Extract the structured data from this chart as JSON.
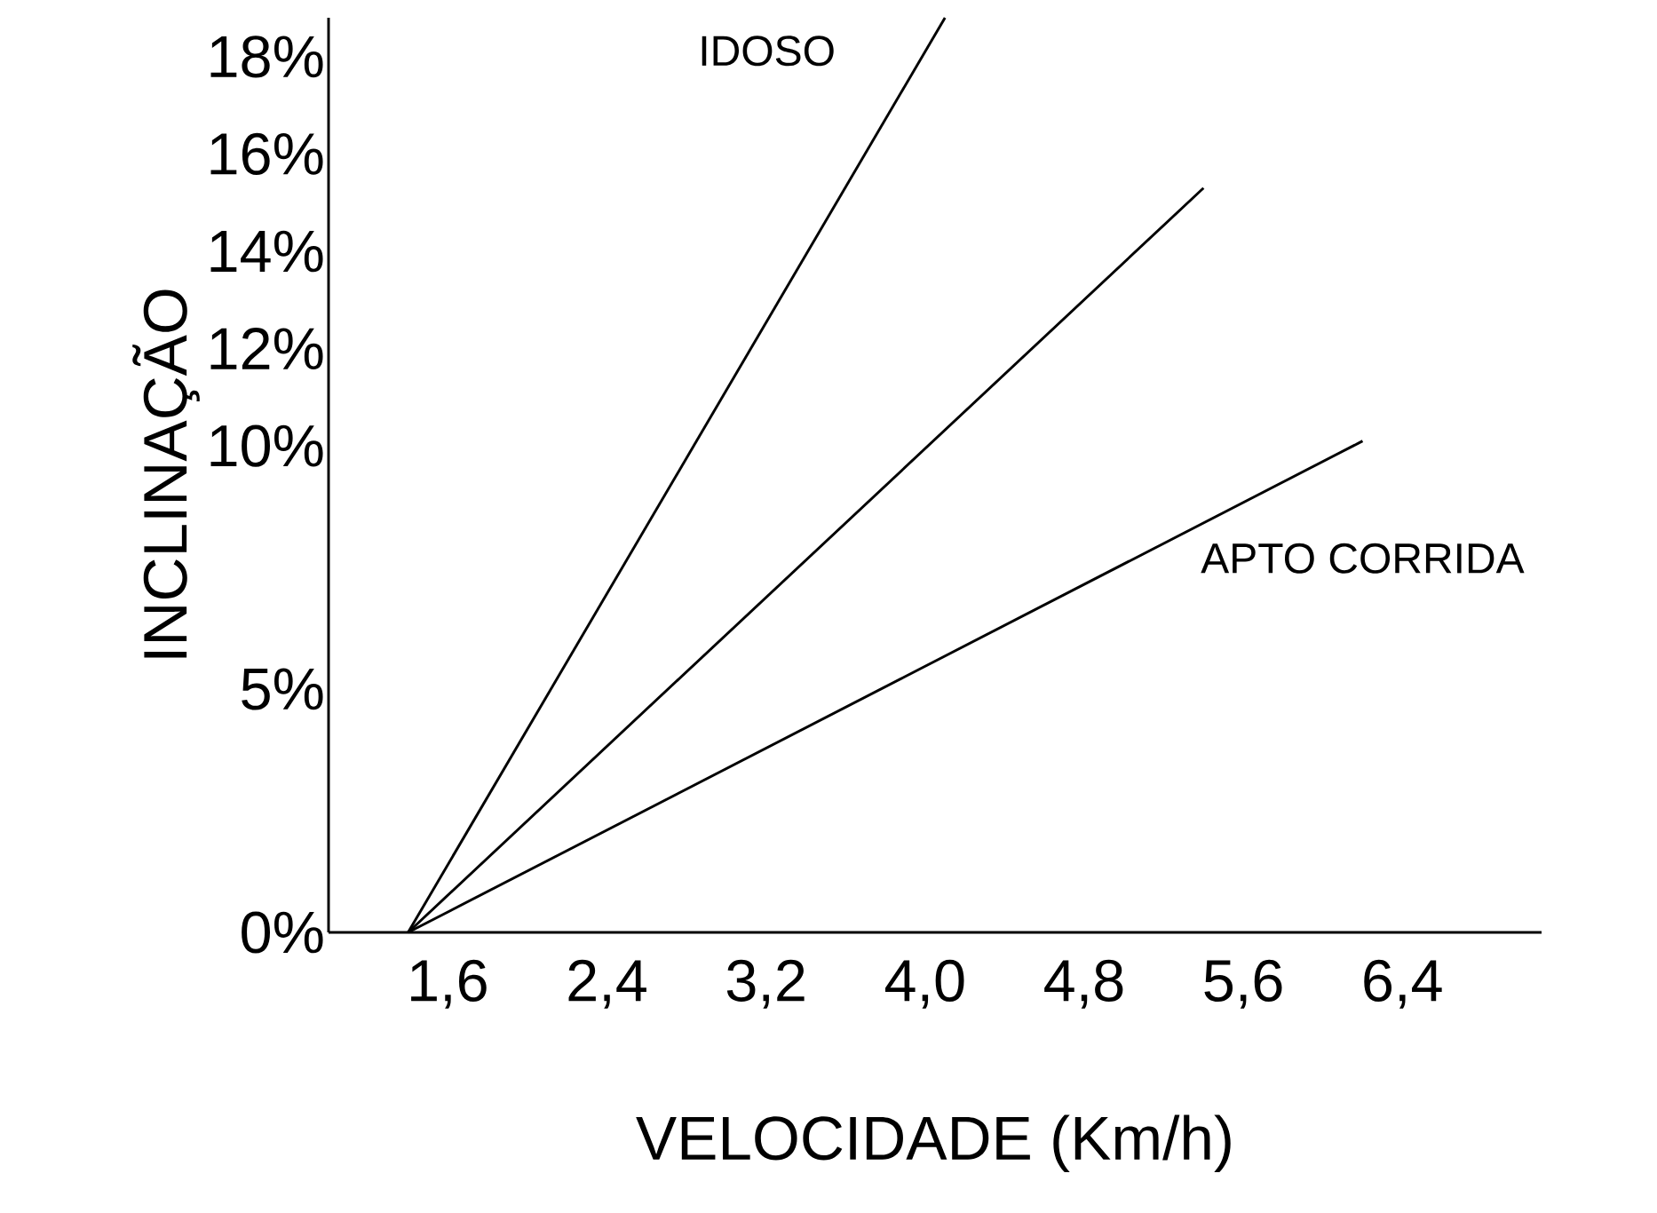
{
  "chart_data": {
    "type": "line",
    "xlabel": "VELOCIDADE (Km/h)",
    "ylabel": "INCLINAÇÃO",
    "xlim": [
      1.0,
      7.1
    ],
    "ylim": [
      0,
      18.8
    ],
    "xticks": [
      {
        "value": 1.6,
        "label": "1,6"
      },
      {
        "value": 2.4,
        "label": "2,4"
      },
      {
        "value": 3.2,
        "label": "3,2"
      },
      {
        "value": 4.0,
        "label": "4,0"
      },
      {
        "value": 4.8,
        "label": "4,8"
      },
      {
        "value": 5.6,
        "label": "5,6"
      },
      {
        "value": 6.4,
        "label": "6,4"
      }
    ],
    "yticks": [
      {
        "value": 0,
        "label": "0%"
      },
      {
        "value": 5,
        "label": "5%"
      },
      {
        "value": 10,
        "label": "10%"
      },
      {
        "value": 12,
        "label": "12%"
      },
      {
        "value": 14,
        "label": "14%"
      },
      {
        "value": 16,
        "label": "16%"
      },
      {
        "value": 18,
        "label": "18%"
      }
    ],
    "series": [
      {
        "name": "IDOSO",
        "color": "#000000",
        "x": [
          1.4,
          4.1
        ],
        "values": [
          0,
          18.8
        ]
      },
      {
        "color": "#000000",
        "x": [
          1.4,
          5.4
        ],
        "values": [
          0,
          15.3
        ]
      },
      {
        "name": "APTO CORRIDA",
        "color": "#000000",
        "x": [
          1.4,
          6.2
        ],
        "values": [
          0,
          10.1
        ]
      }
    ]
  }
}
